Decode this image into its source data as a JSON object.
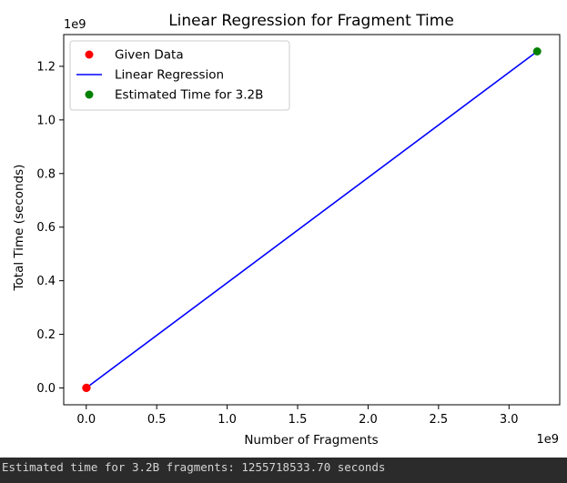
{
  "output": {
    "text": "Estimated time for 3.2B fragments: 1255718533.70 seconds"
  },
  "chart_data": {
    "type": "scatter",
    "title": "Linear Regression for Fragment Time",
    "xlabel": "Number of Fragments",
    "ylabel": "Total Time (seconds)",
    "x_scale_label": "1e9",
    "y_scale_label": "1e9",
    "xlim": [
      -0.16,
      3.36
    ],
    "ylim": [
      -0.0628,
      1.3185
    ],
    "xticks": [
      0.0,
      0.5,
      1.0,
      1.5,
      2.0,
      2.5,
      3.0
    ],
    "xtick_labels": [
      "0.0",
      "0.5",
      "1.0",
      "1.5",
      "2.0",
      "2.5",
      "3.0"
    ],
    "yticks": [
      0.0,
      0.2,
      0.4,
      0.6,
      0.8,
      1.0,
      1.2
    ],
    "ytick_labels": [
      "0.0",
      "0.2",
      "0.4",
      "0.6",
      "0.8",
      "1.0",
      "1.2"
    ],
    "grid": false,
    "legend_placement": "upper-left",
    "series": [
      {
        "name": "Given Data",
        "kind": "scatter",
        "color": "#ff0000",
        "points": [
          [
            0.0,
            0.0
          ],
          [
            0.001,
            0.0004
          ],
          [
            0.002,
            0.0008
          ]
        ]
      },
      {
        "name": "Linear Regression",
        "kind": "line",
        "color": "#0000ff",
        "points": [
          [
            0.0,
            0.0
          ],
          [
            3.2,
            1.2557
          ]
        ]
      },
      {
        "name": "Estimated Time for 3.2B",
        "kind": "scatter",
        "color": "#008000",
        "points": [
          [
            3.2,
            1.2557
          ]
        ]
      }
    ]
  }
}
